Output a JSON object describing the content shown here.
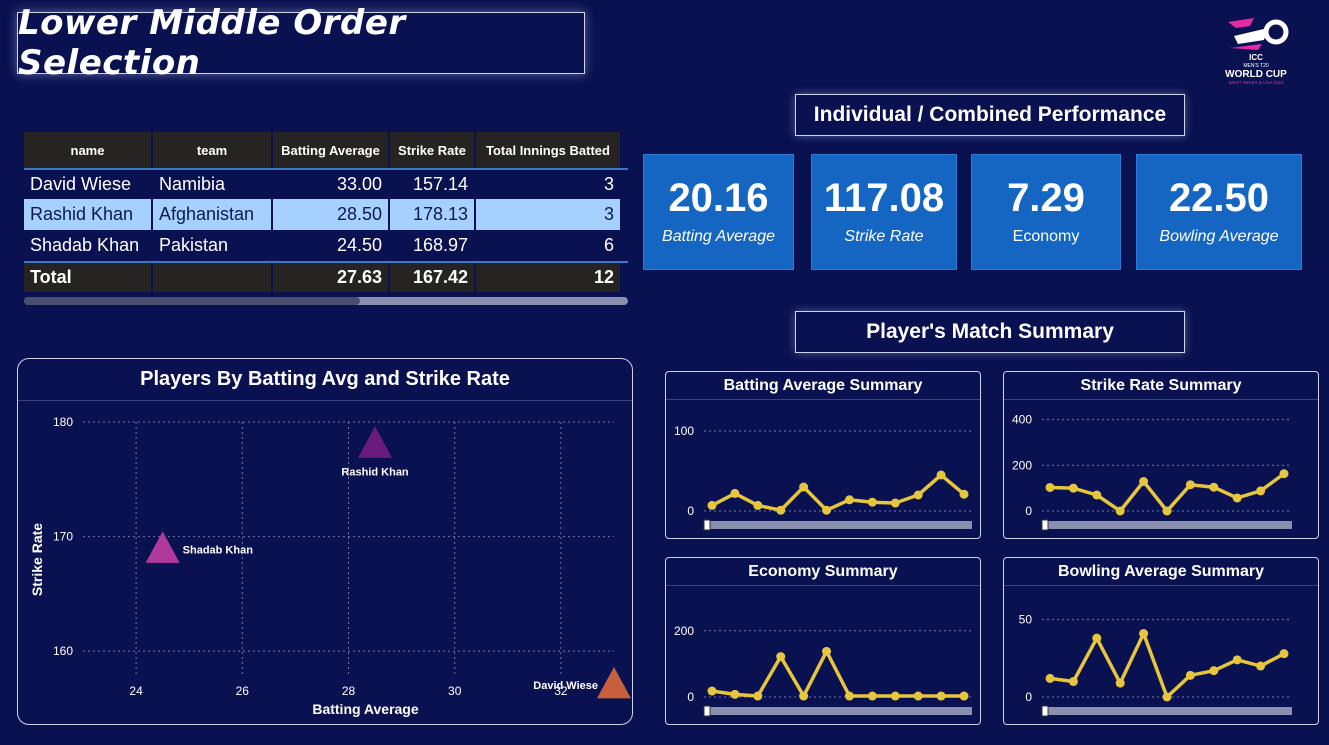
{
  "title": "Lower Middle Order Selection",
  "logo": {
    "top": "ICC",
    "mid": "MEN'S T20",
    "main": "WORLD CUP",
    "sub": "WEST INDIES & USA 2024"
  },
  "sections": {
    "performance": "Individual / Combined Performance",
    "summary": "Player's Match Summary"
  },
  "table": {
    "headers": [
      "name",
      "team",
      "Batting Average",
      "Strike Rate",
      "Total Innings Batted"
    ],
    "rows": [
      [
        "David Wiese",
        "Namibia",
        "33.00",
        "157.14",
        "3"
      ],
      [
        "Rashid Khan",
        "Afghanistan",
        "28.50",
        "178.13",
        "3"
      ],
      [
        "Shadab Khan",
        "Pakistan",
        "24.50",
        "168.97",
        "6"
      ]
    ],
    "total": [
      "Total",
      "",
      "27.63",
      "167.42",
      "12"
    ],
    "selected_row": 1
  },
  "kpis": [
    {
      "value": "20.16",
      "label": "Batting Average"
    },
    {
      "value": "117.08",
      "label": "Strike Rate"
    },
    {
      "value": "7.29",
      "label": "Economy"
    },
    {
      "value": "22.50",
      "label": "Bowling Average"
    }
  ],
  "colors": {
    "background": "#0a1150",
    "kpi": "#1566c2",
    "line": "#e6c63c",
    "selected_row": "#a6d0ff",
    "rashid": "#6b1a7e",
    "shadab": "#b03a9c",
    "david": "#c8603c"
  },
  "chart_data": [
    {
      "type": "scatter",
      "title": "Players By Batting Avg and Strike Rate",
      "xlabel": "Batting Average",
      "ylabel": "Strike Rate",
      "xlim": [
        23,
        33
      ],
      "ylim": [
        156,
        180
      ],
      "xticks": [
        24,
        26,
        28,
        30,
        32
      ],
      "yticks": [
        160,
        170,
        180
      ],
      "grid": true,
      "marker": "triangle",
      "points": [
        {
          "label": "David Wiese",
          "x": 33.0,
          "y": 157.14,
          "color": "#c8603c"
        },
        {
          "label": "Rashid Khan",
          "x": 28.5,
          "y": 178.13,
          "color": "#6b1a7e"
        },
        {
          "label": "Shadab Khan",
          "x": 24.5,
          "y": 168.97,
          "color": "#b03a9c"
        }
      ]
    },
    {
      "type": "line",
      "title": "Batting Average Summary",
      "ylim": [
        0,
        120
      ],
      "yticks": [
        0,
        100
      ],
      "values": [
        7,
        22,
        7,
        1,
        30,
        1,
        14,
        11,
        10,
        20,
        45,
        21
      ]
    },
    {
      "type": "line",
      "title": "Strike Rate Summary",
      "ylim": [
        0,
        420
      ],
      "yticks": [
        0,
        200,
        400
      ],
      "values": [
        103,
        100,
        70,
        0,
        129,
        0,
        115,
        104,
        57,
        88,
        163
      ]
    },
    {
      "type": "line",
      "title": "Economy Summary",
      "ylim": [
        0,
        290
      ],
      "yticks": [
        0,
        200
      ],
      "values": [
        18,
        8,
        3,
        122,
        3,
        138,
        3,
        3,
        3,
        3,
        3,
        3
      ]
    },
    {
      "type": "line",
      "title": "Bowling Average Summary",
      "ylim": [
        0,
        62
      ],
      "yticks": [
        0,
        50
      ],
      "values": [
        12,
        10,
        38,
        9,
        41,
        0,
        14,
        17,
        24,
        20,
        28
      ]
    }
  ]
}
